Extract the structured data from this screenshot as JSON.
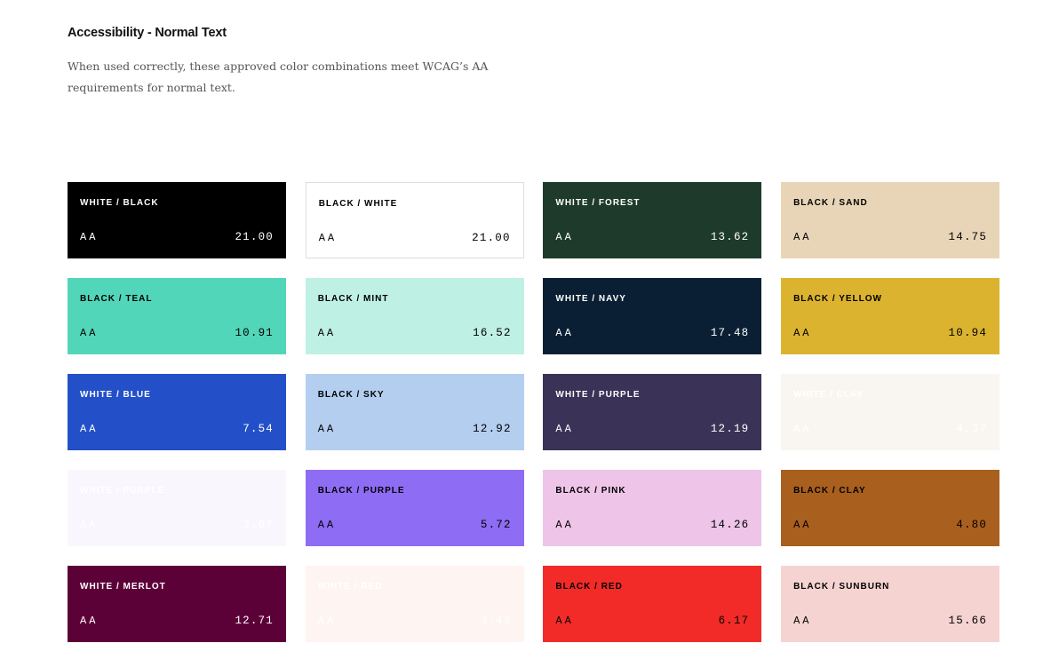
{
  "header": {
    "title": "Accessibility - Normal Text",
    "description": "When used correctly, these approved color combinations meet WCAG’s AA requirements for normal text."
  },
  "cards": [
    {
      "label": "WHITE / BLACK",
      "level": "AA",
      "ratio": "21.00",
      "bg": "#000000",
      "fg": "#ffffff"
    },
    {
      "label": "BLACK / WHITE",
      "level": "AA",
      "ratio": "21.00",
      "bg": "#ffffff",
      "fg": "#000000",
      "border": true
    },
    {
      "label": "WHITE / FOREST",
      "level": "AA",
      "ratio": "13.62",
      "bg": "#1e3a2a",
      "fg": "#ffffff"
    },
    {
      "label": "BLACK / SAND",
      "level": "AA",
      "ratio": "14.75",
      "bg": "#e8d5b7",
      "fg": "#000000"
    },
    {
      "label": "BLACK / TEAL",
      "level": "AA",
      "ratio": "10.91",
      "bg": "#52d6b9",
      "fg": "#000000"
    },
    {
      "label": "BLACK / MINT",
      "level": "AA",
      "ratio": "16.52",
      "bg": "#bff0e4",
      "fg": "#000000"
    },
    {
      "label": "WHITE / NAVY",
      "level": "AA",
      "ratio": "17.48",
      "bg": "#0a1f33",
      "fg": "#ffffff"
    },
    {
      "label": "BLACK / YELLOW",
      "level": "AA",
      "ratio": "10.94",
      "bg": "#dbb32f",
      "fg": "#000000"
    },
    {
      "label": "WHITE / BLUE",
      "level": "AA",
      "ratio": "7.54",
      "bg": "#2350c8",
      "fg": "#ffffff"
    },
    {
      "label": "BLACK / SKY",
      "level": "AA",
      "ratio": "12.92",
      "bg": "#b4cef0",
      "fg": "#000000"
    },
    {
      "label": "WHITE / PURPLE",
      "level": "AA",
      "ratio": "12.19",
      "bg": "#3a3257",
      "fg": "#ffffff"
    },
    {
      "label": "WHITE / CLAY",
      "level": "AA",
      "ratio": "4.37",
      "bg": "#f9f6f1",
      "fg": "#ffffff"
    },
    {
      "label": "WHITE / PURPLE",
      "level": "AA",
      "ratio": "3.67",
      "bg": "#f9f7fd",
      "fg": "#ffffff"
    },
    {
      "label": "BLACK / PURPLE",
      "level": "AA",
      "ratio": "5.72",
      "bg": "#8f6cf4",
      "fg": "#000000"
    },
    {
      "label": "BLACK / PINK",
      "level": "AA",
      "ratio": "14.26",
      "bg": "#eec5e8",
      "fg": "#000000"
    },
    {
      "label": "BLACK / CLAY",
      "level": "AA",
      "ratio": "4.80",
      "bg": "#a95f1e",
      "fg": "#000000"
    },
    {
      "label": "WHITE / MERLOT",
      "level": "AA",
      "ratio": "12.71",
      "bg": "#5c0038",
      "fg": "#ffffff"
    },
    {
      "label": "WHITE / RED",
      "level": "AA",
      "ratio": "3.40",
      "bg": "#fef4f2",
      "fg": "#ffffff"
    },
    {
      "label": "BLACK / RED",
      "level": "AA",
      "ratio": "6.17",
      "bg": "#f22b29",
      "fg": "#000000"
    },
    {
      "label": "BLACK / SUNBURN",
      "level": "AA",
      "ratio": "15.66",
      "bg": "#f5d3d1",
      "fg": "#000000"
    }
  ]
}
